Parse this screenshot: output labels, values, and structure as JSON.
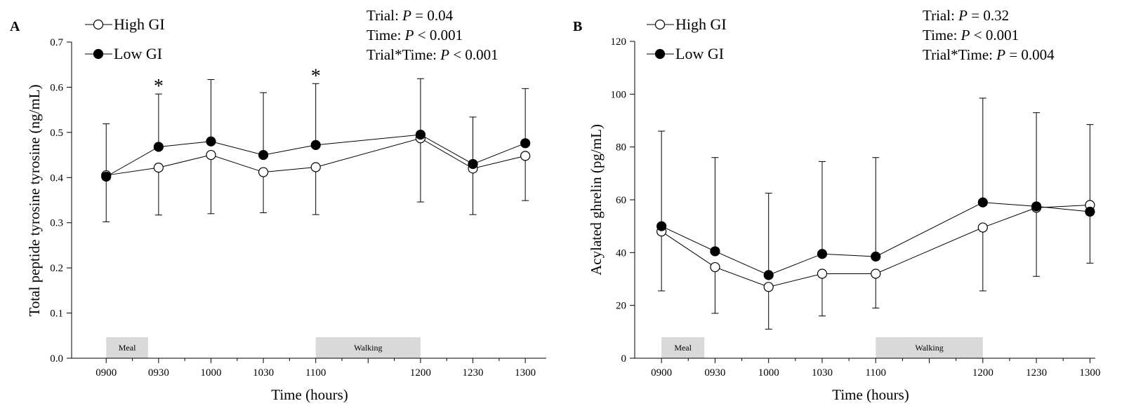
{
  "chart_data": [
    {
      "type": "line",
      "panel_label": "A",
      "xlabel": "Time (hours)",
      "ylabel": "Total peptide tyrosine tyrosine (ng/mL)",
      "x": [
        "0900",
        "0930",
        "1000",
        "1030",
        "1100",
        "1200",
        "1230",
        "1300"
      ],
      "x_hours": [
        9.0,
        9.5,
        10.0,
        10.5,
        11.0,
        12.0,
        12.5,
        13.0
      ],
      "ylim": [
        0.0,
        0.7
      ],
      "yticks": [
        "0.0",
        "0.1",
        "0.2",
        "0.3",
        "0.4",
        "0.5",
        "0.6",
        "0.7"
      ],
      "grid": false,
      "legend_position": "top-left",
      "series": [
        {
          "name": "High GI",
          "marker": "open-circle",
          "values": [
            0.405,
            0.422,
            0.45,
            0.412,
            0.423,
            0.487,
            0.42,
            0.448
          ],
          "error_lower": [
            0.302,
            0.317,
            0.32,
            0.322,
            0.318,
            0.346,
            0.318,
            0.349
          ]
        },
        {
          "name": "Low GI",
          "marker": "filled-circle",
          "values": [
            0.402,
            0.468,
            0.48,
            0.45,
            0.472,
            0.495,
            0.43,
            0.476
          ],
          "error_upper": [
            0.519,
            0.585,
            0.617,
            0.588,
            0.608,
            0.619,
            0.534,
            0.597
          ]
        }
      ],
      "significance_markers": [
        {
          "x": "0930",
          "text": "*"
        },
        {
          "x": "1100",
          "text": "*"
        }
      ],
      "shaded_periods": [
        {
          "label": "Meal",
          "start_hours": 9.0,
          "end_hours": 9.4
        },
        {
          "label": "Walking",
          "start_hours": 11.0,
          "end_hours": 12.0
        }
      ],
      "annotations": [
        "Trial: P = 0.04",
        "Time: P < 0.001",
        "Trial*Time: P < 0.001"
      ],
      "stats": [
        {
          "label": "Trial: ",
          "p_label": "P",
          "rel": " = ",
          "value": "0.04"
        },
        {
          "label": "Time: ",
          "p_label": "P",
          "rel": " < ",
          "value": "0.001"
        },
        {
          "label": "Trial*Time: ",
          "p_label": "P",
          "rel": " < ",
          "value": "0.001"
        }
      ]
    },
    {
      "type": "line",
      "panel_label": "B",
      "xlabel": "Time (hours)",
      "ylabel": "Acylated ghrelin (pg/mL)",
      "x": [
        "0900",
        "0930",
        "1000",
        "1030",
        "1100",
        "1200",
        "1230",
        "1300"
      ],
      "x_hours": [
        9.0,
        9.5,
        10.0,
        10.5,
        11.0,
        12.0,
        12.5,
        13.0
      ],
      "ylim": [
        0,
        120
      ],
      "yticks": [
        "0",
        "20",
        "40",
        "60",
        "80",
        "100",
        "120"
      ],
      "grid": false,
      "legend_position": "top-left",
      "series": [
        {
          "name": "High GI",
          "marker": "open-circle",
          "values": [
            48,
            34.5,
            27,
            32,
            32,
            49.5,
            57,
            58
          ],
          "error_lower": [
            25.5,
            17,
            11,
            16,
            19,
            25.5,
            31,
            36
          ]
        },
        {
          "name": "Low GI",
          "marker": "filled-circle",
          "values": [
            50,
            40.5,
            31.5,
            39.5,
            38.5,
            59,
            57.5,
            55.5
          ],
          "error_upper": [
            86,
            76,
            62.5,
            74.5,
            76,
            98.5,
            93,
            88.5
          ]
        }
      ],
      "shaded_periods": [
        {
          "label": "Meal",
          "start_hours": 9.0,
          "end_hours": 9.4
        },
        {
          "label": "Walking",
          "start_hours": 11.0,
          "end_hours": 12.0
        }
      ],
      "annotations": [
        "Trial: P = 0.32",
        "Time: P < 0.001",
        "Trial*Time: P = 0.004"
      ],
      "stats": [
        {
          "label": "Trial: ",
          "p_label": "P",
          "rel": " = ",
          "value": "0.32"
        },
        {
          "label": "Time: ",
          "p_label": "P",
          "rel": " < ",
          "value": "0.001"
        },
        {
          "label": "Trial*Time: ",
          "p_label": "P",
          "rel": " = ",
          "value": "0.004"
        }
      ]
    }
  ]
}
